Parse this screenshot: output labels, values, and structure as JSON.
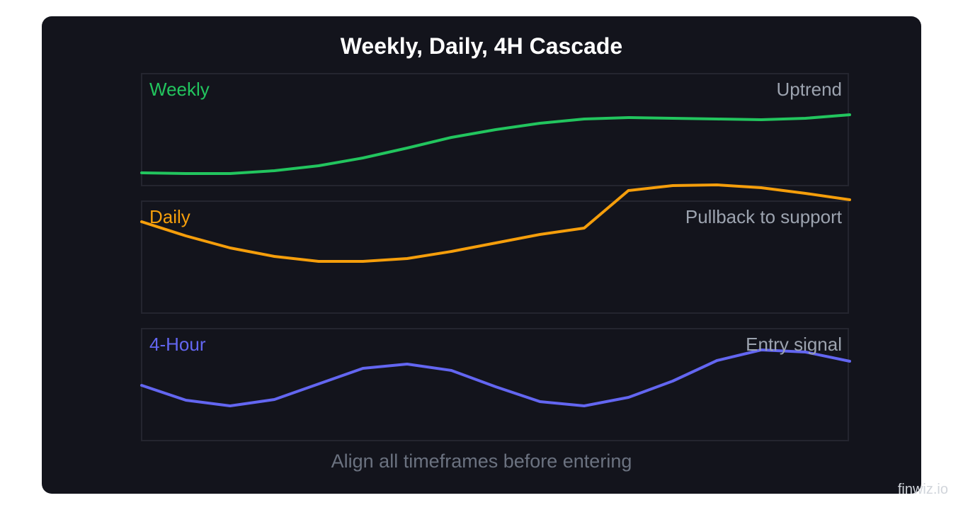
{
  "chart_data": {
    "type": "line",
    "title": "Weekly, Daily, 4H Cascade",
    "footer": "Align all timeframes before entering",
    "panels": [
      {
        "name": "Weekly",
        "note": "Uptrend",
        "color": "#22c55e",
        "values": [
          244,
          245,
          245,
          241,
          234,
          223,
          209,
          194,
          183,
          174,
          168,
          166,
          167,
          168,
          169,
          167,
          162
        ]
      },
      {
        "name": "Daily",
        "note": "Pullback to support",
        "color": "#f59e0b",
        "values": [
          313,
          333,
          350,
          362,
          369,
          369,
          365,
          355,
          343,
          331,
          322,
          269,
          262,
          261,
          265,
          273,
          282
        ]
      },
      {
        "name": "4-Hour",
        "note": "Entry signal",
        "color": "#6366f1",
        "values": [
          544,
          565,
          573,
          564,
          542,
          520,
          514,
          523,
          546,
          567,
          573,
          561,
          538,
          509,
          494,
          497,
          510
        ]
      }
    ]
  },
  "watermark": "finwiz.io"
}
